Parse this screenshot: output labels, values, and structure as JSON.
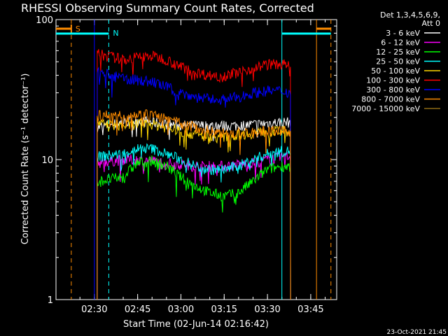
{
  "chart_data": {
    "type": "line",
    "title": "RHESSI Observing Summary Count Rates, Corrected",
    "xlabel": "Start Time (02-Jun-14 02:16:42)",
    "ylabel": "Corrected Count Rate (s⁻¹ detector⁻¹)",
    "yscale": "log",
    "ylim": [
      1,
      100
    ],
    "yticks": [
      "1",
      "10",
      "100"
    ],
    "xlim_minutes": [
      "02:16:42",
      "03:54:00"
    ],
    "xticks": [
      "02:30",
      "02:45",
      "03:00",
      "03:15",
      "03:30",
      "03:45"
    ],
    "legend_header": [
      "Det 1,3,4,5,6,9,",
      "Att 0"
    ],
    "legend_position": "top-right, outside plot",
    "series": [
      {
        "name": "3 - 6 keV",
        "color": "#ffffff",
        "x": [
          "02:31",
          "02:40",
          "02:45",
          "02:50",
          "02:55",
          "03:00",
          "03:05",
          "03:10",
          "03:15",
          "03:20",
          "03:25",
          "03:30",
          "03:35",
          "03:38"
        ],
        "values": [
          17,
          18.5,
          19,
          18.5,
          18,
          17.5,
          17.5,
          17.5,
          17.5,
          17.5,
          17.8,
          18.2,
          18.5,
          18.5
        ]
      },
      {
        "name": "6 - 12 keV",
        "color": "#ff00ff",
        "x": [
          "02:31",
          "02:40",
          "02:45",
          "02:50",
          "02:55",
          "03:00",
          "03:05",
          "03:10",
          "03:15",
          "03:20",
          "03:25",
          "03:30",
          "03:35",
          "03:38"
        ],
        "values": [
          9.5,
          10,
          10,
          9.8,
          9.5,
          9.2,
          9,
          9,
          9,
          9.2,
          9.5,
          10,
          10.5,
          10.5
        ]
      },
      {
        "name": "12 - 25 keV",
        "color": "#00ff00",
        "x": [
          "02:31",
          "02:40",
          "02:45",
          "02:50",
          "02:55",
          "03:00",
          "03:05",
          "03:10",
          "03:15",
          "03:20",
          "03:25",
          "03:30",
          "03:35",
          "03:38"
        ],
        "values": [
          7,
          7.5,
          9.5,
          9.8,
          9,
          7.5,
          6.5,
          5.8,
          5.5,
          5.8,
          7,
          8.5,
          9,
          9
        ]
      },
      {
        "name": "25 - 50 keV",
        "color": "#00ffff",
        "x": [
          "02:31",
          "02:40",
          "02:45",
          "02:50",
          "02:55",
          "03:00",
          "03:05",
          "03:10",
          "03:15",
          "03:20",
          "03:25",
          "03:30",
          "03:35",
          "03:38"
        ],
        "values": [
          10.5,
          11,
          12,
          12,
          11,
          10,
          9,
          8.5,
          8.5,
          9,
          10,
          11,
          11.5,
          11.5
        ]
      },
      {
        "name": "50 - 100 keV",
        "color": "#ffd700",
        "x": [
          "02:31",
          "02:40",
          "02:45",
          "02:50",
          "02:55",
          "03:00",
          "03:05",
          "03:10",
          "03:15",
          "03:20",
          "03:25",
          "03:30",
          "03:35",
          "03:38"
        ],
        "values": [
          18,
          17.5,
          18,
          18,
          17,
          16,
          15,
          14.5,
          14.5,
          15,
          15.5,
          16,
          16,
          16
        ]
      },
      {
        "name": "100 - 300 keV",
        "color": "#ff0000",
        "x": [
          "02:31",
          "02:40",
          "02:45",
          "02:50",
          "02:55",
          "03:00",
          "03:05",
          "03:10",
          "03:15",
          "03:20",
          "03:25",
          "03:30",
          "03:35",
          "03:38"
        ],
        "values": [
          57,
          52,
          54,
          55,
          52,
          46,
          42,
          40,
          40,
          42,
          45,
          48,
          48,
          47
        ]
      },
      {
        "name": "300 - 800 keV",
        "color": "#0000ff",
        "x": [
          "02:31",
          "02:40",
          "02:45",
          "02:50",
          "02:55",
          "03:00",
          "03:05",
          "03:10",
          "03:15",
          "03:20",
          "03:25",
          "03:30",
          "03:35",
          "03:38"
        ],
        "values": [
          42,
          38,
          37,
          36,
          33,
          30,
          28,
          27,
          27,
          28,
          30,
          31,
          31,
          30
        ]
      },
      {
        "name": "800 - 7000 keV",
        "color": "#ff8c00",
        "x": [
          "02:31",
          "02:40",
          "02:45",
          "02:50",
          "02:55",
          "03:00",
          "03:05",
          "03:10",
          "03:15",
          "03:20",
          "03:25",
          "03:30",
          "03:35",
          "03:38"
        ],
        "values": [
          21,
          20.5,
          21,
          21,
          19.5,
          18,
          17,
          16,
          15.5,
          15.5,
          15.5,
          16,
          16,
          16
        ]
      },
      {
        "name": "7000 - 15000 keV",
        "color": "#8b6914",
        "x": [],
        "values": []
      }
    ],
    "annotations": [
      {
        "label": "S",
        "color": "#ff8c00"
      },
      {
        "label": "N",
        "color": "#00ffff"
      }
    ],
    "footer_timestamp": "23-Oct-2021 21:45"
  }
}
